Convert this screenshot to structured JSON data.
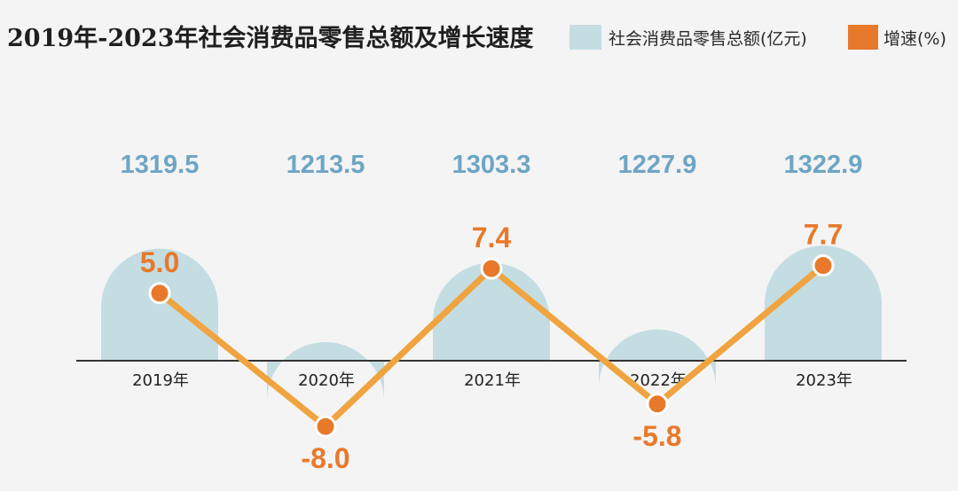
{
  "title": "2019年-2023年社会消费品零售总额及增长速度",
  "legend": {
    "bar_label": "社会消费品零售总额(亿元)",
    "line_label": "增速(%)"
  },
  "colors": {
    "bar": "#c4dde3",
    "line": "#efa43f",
    "marker": "#e8792b",
    "bar_value": "#6ea5c4",
    "axis": "#333333"
  },
  "chart_data": {
    "type": "bar",
    "categories": [
      "2019年",
      "2020年",
      "2021年",
      "2022年",
      "2023年"
    ],
    "series": [
      {
        "name": "社会消费品零售总额(亿元)",
        "type": "bar",
        "values": [
          1319.5,
          1213.5,
          1303.3,
          1227.9,
          1322.9
        ],
        "labels": [
          "1319.5",
          "1213.5",
          "1303.3",
          "1227.9",
          "1322.9"
        ]
      },
      {
        "name": "增速(%)",
        "type": "line",
        "values": [
          5.0,
          -8.0,
          7.4,
          -5.8,
          7.7
        ],
        "labels": [
          "5.0",
          "-8.0",
          "7.4",
          "-5.8",
          "7.7"
        ]
      }
    ],
    "legend_position": "top-right",
    "grid": false
  }
}
